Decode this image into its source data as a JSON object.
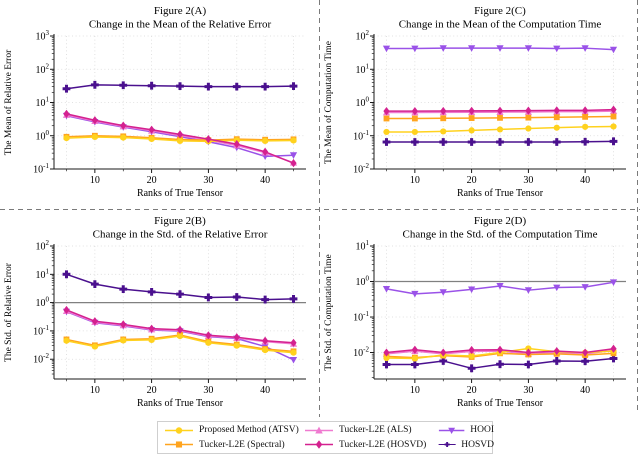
{
  "figure": {
    "background": "#ffffff",
    "x_label": "Ranks of True Tensor",
    "x_ticks": [
      10,
      20,
      30,
      40
    ],
    "x_points": [
      5,
      10,
      15,
      20,
      25,
      30,
      35,
      40,
      45
    ],
    "grid_color": "#d9d9d9",
    "divider_color": "#7a7a7a",
    "baseline_color": "#808080"
  },
  "series_styles": {
    "atsv": {
      "color": "#FFD21E",
      "marker": "circle"
    },
    "spectral": {
      "color": "#FFA41E",
      "marker": "square"
    },
    "als": {
      "color": "#EF7AD0",
      "marker": "triangle-up"
    },
    "l2e_hosvd": {
      "color": "#D4218F",
      "marker": "diamond"
    },
    "hooi": {
      "color": "#9A52E8",
      "marker": "triangle-down"
    },
    "hosvd": {
      "color": "#4A108E",
      "marker": "plus"
    }
  },
  "legend": {
    "items": [
      {
        "id": "atsv",
        "label": "Proposed Method (ATSV)"
      },
      {
        "id": "als",
        "label": "Tucker-L2E (ALS)"
      },
      {
        "id": "hooi",
        "label": "HOOI"
      },
      {
        "id": "spectral",
        "label": "Tucker-L2E (Spectral)"
      },
      {
        "id": "l2e_hosvd",
        "label": "Tucker-L2E (HOSVD)"
      },
      {
        "id": "hosvd",
        "label": "HOSVD"
      }
    ]
  },
  "chart_data": [
    {
      "id": "fig2a",
      "panel": "top-left",
      "type": "line",
      "title_line1": "Figure 2(A)",
      "title_line2": "Change in the Mean of the Relative Error",
      "ylabel": "The Mean of Relative Error",
      "xlabel": "Ranks of True Tensor",
      "x": [
        5,
        10,
        15,
        20,
        25,
        30,
        35,
        40,
        45
      ],
      "ylim": [
        0.1,
        1000
      ],
      "yscale": "log",
      "grid": true,
      "legend_position": "none",
      "series": [
        {
          "id": "hosvd",
          "name": "HOSVD",
          "values": [
            26,
            34,
            33,
            32,
            31,
            30,
            30,
            30,
            31
          ]
        },
        {
          "id": "hooi",
          "name": "HOOI",
          "values": [
            4.0,
            2.6,
            1.82,
            1.32,
            0.94,
            0.66,
            0.44,
            0.24,
            0.26
          ]
        },
        {
          "id": "als",
          "name": "Tucker-L2E (ALS)",
          "values": [
            4.2,
            2.75,
            1.9,
            1.42,
            1.02,
            0.74,
            0.51,
            0.31,
            0.155
          ]
        },
        {
          "id": "spectral",
          "name": "Tucker-L2E (Spectral)",
          "values": [
            0.93,
            1.0,
            0.96,
            0.87,
            0.77,
            0.74,
            0.79,
            0.76,
            0.78
          ]
        },
        {
          "id": "atsv",
          "name": "Proposed Method (ATSV)",
          "values": [
            0.85,
            0.92,
            0.88,
            0.8,
            0.7,
            0.68,
            0.73,
            0.7,
            0.72
          ]
        },
        {
          "id": "l2e_hosvd",
          "name": "Tucker-L2E (HOSVD)",
          "values": [
            4.55,
            2.92,
            2.02,
            1.52,
            1.1,
            0.79,
            0.56,
            0.33,
            0.15
          ]
        }
      ]
    },
    {
      "id": "fig2c",
      "panel": "top-right",
      "type": "line",
      "title_line1": "Figure 2(C)",
      "title_line2": "Change in the Mean of the Computation Time",
      "ylabel": "The Mean of Computation Time",
      "xlabel": "Ranks of True Tensor",
      "x": [
        5,
        10,
        15,
        20,
        25,
        30,
        35,
        40,
        45
      ],
      "ylim": [
        0.01,
        100
      ],
      "yscale": "log",
      "grid": true,
      "legend_position": "none",
      "series": [
        {
          "id": "hosvd",
          "name": "HOSVD",
          "values": [
            0.065,
            0.065,
            0.065,
            0.065,
            0.065,
            0.065,
            0.065,
            0.066,
            0.068
          ]
        },
        {
          "id": "hooi",
          "name": "HOOI",
          "values": [
            42,
            42,
            43,
            43,
            43,
            43,
            42,
            43,
            39
          ]
        },
        {
          "id": "als",
          "name": "Tucker-L2E (ALS)",
          "values": [
            0.5,
            0.5,
            0.505,
            0.51,
            0.515,
            0.52,
            0.53,
            0.53,
            0.55
          ]
        },
        {
          "id": "spectral",
          "name": "Tucker-L2E (Spectral)",
          "values": [
            0.33,
            0.33,
            0.335,
            0.34,
            0.345,
            0.35,
            0.36,
            0.37,
            0.38
          ]
        },
        {
          "id": "atsv",
          "name": "Proposed Method (ATSV)",
          "values": [
            0.13,
            0.13,
            0.135,
            0.145,
            0.155,
            0.165,
            0.175,
            0.185,
            0.19
          ]
        },
        {
          "id": "l2e_hosvd",
          "name": "Tucker-L2E (HOSVD)",
          "values": [
            0.55,
            0.55,
            0.555,
            0.56,
            0.565,
            0.57,
            0.58,
            0.58,
            0.61
          ]
        }
      ]
    },
    {
      "id": "fig2b",
      "panel": "bottom-left",
      "type": "line",
      "title_line1": "Figure 2(B)",
      "title_line2": "Change in the Std. of the Relative Error",
      "ylabel": "The Std. of Relative Error",
      "xlabel": "Ranks of True Tensor",
      "x": [
        5,
        10,
        15,
        20,
        25,
        30,
        35,
        40,
        45
      ],
      "ylim": [
        0.002,
        100
      ],
      "yscale": "log",
      "grid": true,
      "hline": 1,
      "legend_position": "none",
      "series": [
        {
          "id": "hosvd",
          "name": "HOSVD",
          "values": [
            10,
            4.5,
            3.0,
            2.4,
            2.0,
            1.52,
            1.58,
            1.28,
            1.35
          ]
        },
        {
          "id": "hooi",
          "name": "HOOI",
          "values": [
            0.48,
            0.195,
            0.15,
            0.108,
            0.098,
            0.063,
            0.054,
            0.028,
            0.0095
          ]
        },
        {
          "id": "als",
          "name": "Tucker-L2E (ALS)",
          "values": [
            0.5,
            0.205,
            0.158,
            0.112,
            0.103,
            0.066,
            0.056,
            0.042,
            0.035
          ]
        },
        {
          "id": "spectral",
          "name": "Tucker-L2E (Spectral)",
          "values": [
            0.05,
            0.031,
            0.05,
            0.053,
            0.072,
            0.042,
            0.033,
            0.023,
            0.019
          ]
        },
        {
          "id": "atsv",
          "name": "Proposed Method (ATSV)",
          "values": [
            0.045,
            0.028,
            0.046,
            0.048,
            0.066,
            0.038,
            0.03,
            0.021,
            0.017
          ]
        },
        {
          "id": "l2e_hosvd",
          "name": "Tucker-L2E (HOSVD)",
          "values": [
            0.55,
            0.22,
            0.17,
            0.12,
            0.11,
            0.07,
            0.06,
            0.045,
            0.038
          ]
        }
      ]
    },
    {
      "id": "fig2d",
      "panel": "bottom-right",
      "type": "line",
      "title_line1": "Figure 2(D)",
      "title_line2": "Change in the Std. of the Computation Time",
      "ylabel": "The Std. of Computation Time",
      "xlabel": "Ranks of True Tensor",
      "x": [
        5,
        10,
        15,
        20,
        25,
        30,
        35,
        40,
        45
      ],
      "ylim": [
        0.0018,
        10
      ],
      "yscale": "log",
      "grid": true,
      "hline": 1,
      "legend_position": "none",
      "series": [
        {
          "id": "hosvd",
          "name": "HOSVD",
          "values": [
            0.0046,
            0.0046,
            0.0058,
            0.0036,
            0.0047,
            0.0046,
            0.0058,
            0.0057,
            0.0068
          ]
        },
        {
          "id": "hooi",
          "name": "HOOI",
          "values": [
            0.62,
            0.45,
            0.5,
            0.6,
            0.75,
            0.57,
            0.68,
            0.7,
            0.95
          ]
        },
        {
          "id": "als",
          "name": "Tucker-L2E (ALS)",
          "values": [
            0.0092,
            0.011,
            0.0092,
            0.0108,
            0.011,
            0.0092,
            0.01,
            0.0092,
            0.0115
          ]
        },
        {
          "id": "spectral",
          "name": "Tucker-L2E (Spectral)",
          "values": [
            0.0078,
            0.0072,
            0.0082,
            0.0075,
            0.0095,
            0.0088,
            0.0092,
            0.0085,
            0.0095
          ]
        },
        {
          "id": "atsv",
          "name": "Proposed Method (ATSV)",
          "values": [
            0.007,
            0.0068,
            0.0085,
            0.008,
            0.01,
            0.013,
            0.0105,
            0.01,
            0.011
          ]
        },
        {
          "id": "l2e_hosvd",
          "name": "Tucker-L2E (HOSVD)",
          "values": [
            0.01,
            0.012,
            0.01,
            0.0118,
            0.012,
            0.01,
            0.011,
            0.01,
            0.0128
          ]
        }
      ]
    }
  ]
}
